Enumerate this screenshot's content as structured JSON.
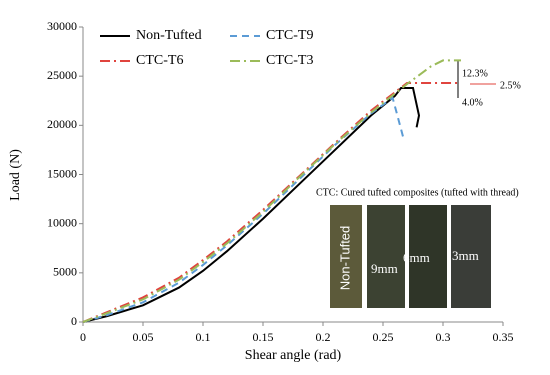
{
  "chart_data": {
    "type": "line",
    "xlabel": "Shear angle (rad)",
    "ylabel": "Load (N)",
    "xlim": [
      0,
      0.35
    ],
    "xticks": [
      0,
      0.05,
      0.1,
      0.15,
      0.2,
      0.25,
      0.3,
      0.35
    ],
    "ylim": [
      0,
      30000
    ],
    "yticks": [
      0,
      5000,
      10000,
      15000,
      20000,
      25000,
      30000
    ],
    "series": [
      {
        "name": "Non-Tufted",
        "color": "#000000",
        "dash": "none",
        "x": [
          0,
          0.02,
          0.05,
          0.08,
          0.1,
          0.12,
          0.15,
          0.18,
          0.21,
          0.24,
          0.26,
          0.265,
          0.275,
          0.28,
          0.278
        ],
        "values": [
          0,
          600,
          1700,
          3500,
          5200,
          7200,
          10500,
          14000,
          17500,
          21000,
          23000,
          23800,
          23800,
          21000,
          19800
        ]
      },
      {
        "name": "CTC-T9",
        "color": "#5b9bd5",
        "dash": "7 5",
        "x": [
          0,
          0.02,
          0.05,
          0.08,
          0.1,
          0.12,
          0.15,
          0.18,
          0.21,
          0.24,
          0.258,
          0.262,
          0.267
        ],
        "values": [
          0,
          700,
          2000,
          4000,
          5800,
          7800,
          11000,
          14500,
          18000,
          21200,
          22800,
          21000,
          18700
        ]
      },
      {
        "name": "CTC-T6",
        "color": "#e0443e",
        "dash": "10 4 2 4",
        "x": [
          0,
          0.02,
          0.05,
          0.08,
          0.1,
          0.12,
          0.15,
          0.18,
          0.21,
          0.24,
          0.27,
          0.315
        ],
        "values": [
          0,
          1000,
          2500,
          4500,
          6300,
          8200,
          11400,
          14800,
          18200,
          21500,
          24300,
          24300
        ]
      },
      {
        "name": "CTC-T3",
        "color": "#9bbb59",
        "dash": "10 4 2 4",
        "x": [
          0,
          0.02,
          0.05,
          0.08,
          0.1,
          0.12,
          0.15,
          0.18,
          0.21,
          0.24,
          0.27,
          0.29,
          0.3,
          0.315
        ],
        "values": [
          0,
          900,
          2300,
          4300,
          6100,
          8000,
          11200,
          14700,
          18100,
          21300,
          24200,
          26000,
          26600,
          26600
        ]
      }
    ],
    "annotations": [
      "12.3%",
      "2.5%",
      "4.0%"
    ],
    "inset": {
      "caption": "CTC: Cured tufted composites (tufted with thread)",
      "labels": [
        "Non-Tufted",
        "9mm",
        "6mm",
        "3mm"
      ]
    }
  }
}
